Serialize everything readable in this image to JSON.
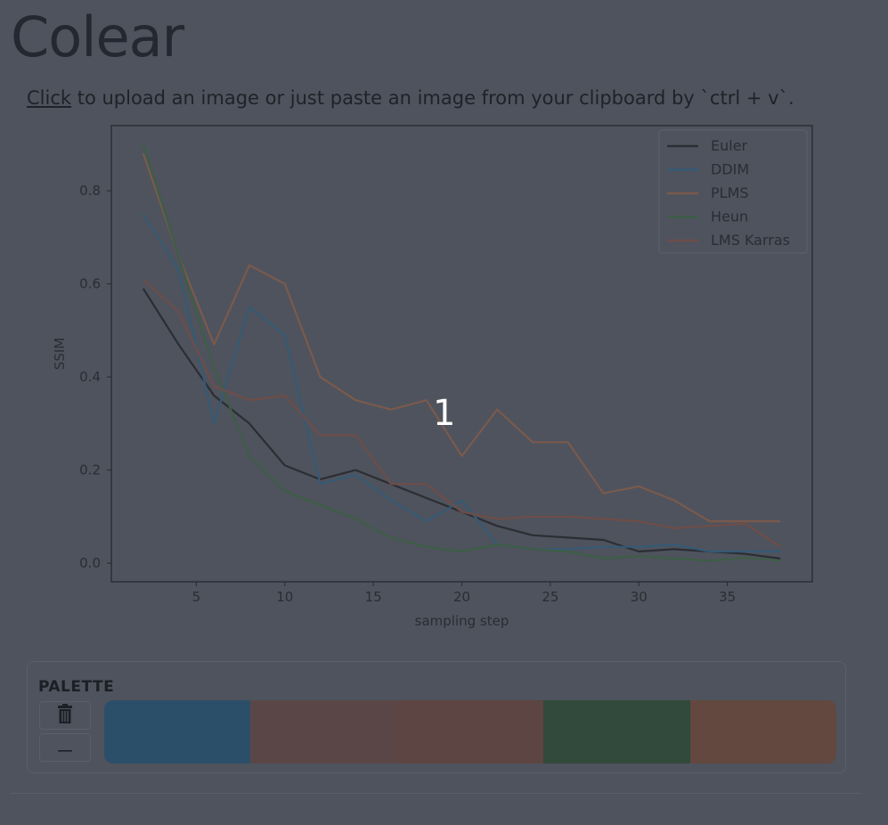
{
  "app": {
    "title": "Colear"
  },
  "instructions": {
    "link_text": "Click",
    "rest_text": " to upload an image or just paste an image from your clipboard by `ctrl + v`."
  },
  "overlay": {
    "number": "1"
  },
  "palette": {
    "label": "PALETTE",
    "delete_icon": "trash-icon",
    "minus_icon": "minus-icon",
    "swatches": [
      "#2c4f69",
      "#5b4647",
      "#5d4543",
      "#324a3c",
      "#62483f"
    ]
  },
  "chart_data": {
    "type": "line",
    "xlabel": "sampling step",
    "ylabel": "SSIM",
    "xlim": [
      0.2,
      39.8
    ],
    "ylim": [
      -0.04,
      0.94
    ],
    "xticks": [
      5,
      10,
      15,
      20,
      25,
      30,
      35
    ],
    "yticks": [
      0.0,
      0.2,
      0.4,
      0.6,
      0.8
    ],
    "legend_position": "top-right",
    "x": [
      2,
      4,
      6,
      8,
      10,
      12,
      14,
      16,
      18,
      20,
      22,
      24,
      26,
      28,
      30,
      32,
      34,
      36,
      38
    ],
    "series": [
      {
        "name": "Euler",
        "color": "#2b2e33",
        "values": [
          0.59,
          0.47,
          0.36,
          0.3,
          0.21,
          0.18,
          0.2,
          0.17,
          0.14,
          0.11,
          0.08,
          0.06,
          0.055,
          0.05,
          0.025,
          0.03,
          0.025,
          0.02,
          0.01
        ]
      },
      {
        "name": "DDIM",
        "color": "#355a75",
        "values": [
          0.75,
          0.63,
          0.3,
          0.55,
          0.49,
          0.17,
          0.19,
          0.135,
          0.09,
          0.135,
          0.04,
          0.03,
          0.03,
          0.035,
          0.035,
          0.04,
          0.025,
          0.025,
          0.025
        ]
      },
      {
        "name": "PLMS",
        "color": "#7a5a4c",
        "values": [
          0.88,
          0.66,
          0.47,
          0.64,
          0.6,
          0.4,
          0.35,
          0.33,
          0.35,
          0.23,
          0.33,
          0.26,
          0.26,
          0.15,
          0.165,
          0.135,
          0.09,
          0.09,
          0.09
        ]
      },
      {
        "name": "Heun",
        "color": "#3d5e46",
        "values": [
          0.9,
          0.66,
          0.42,
          0.23,
          0.155,
          0.125,
          0.095,
          0.055,
          0.035,
          0.025,
          0.04,
          0.03,
          0.025,
          0.01,
          0.015,
          0.01,
          0.005,
          0.012,
          0.005
        ]
      },
      {
        "name": "LMS Karras",
        "color": "#6e4d48",
        "values": [
          0.61,
          0.54,
          0.38,
          0.35,
          0.36,
          0.275,
          0.275,
          0.17,
          0.17,
          0.11,
          0.095,
          0.1,
          0.1,
          0.095,
          0.09,
          0.075,
          0.08,
          0.085,
          0.035
        ]
      }
    ]
  }
}
